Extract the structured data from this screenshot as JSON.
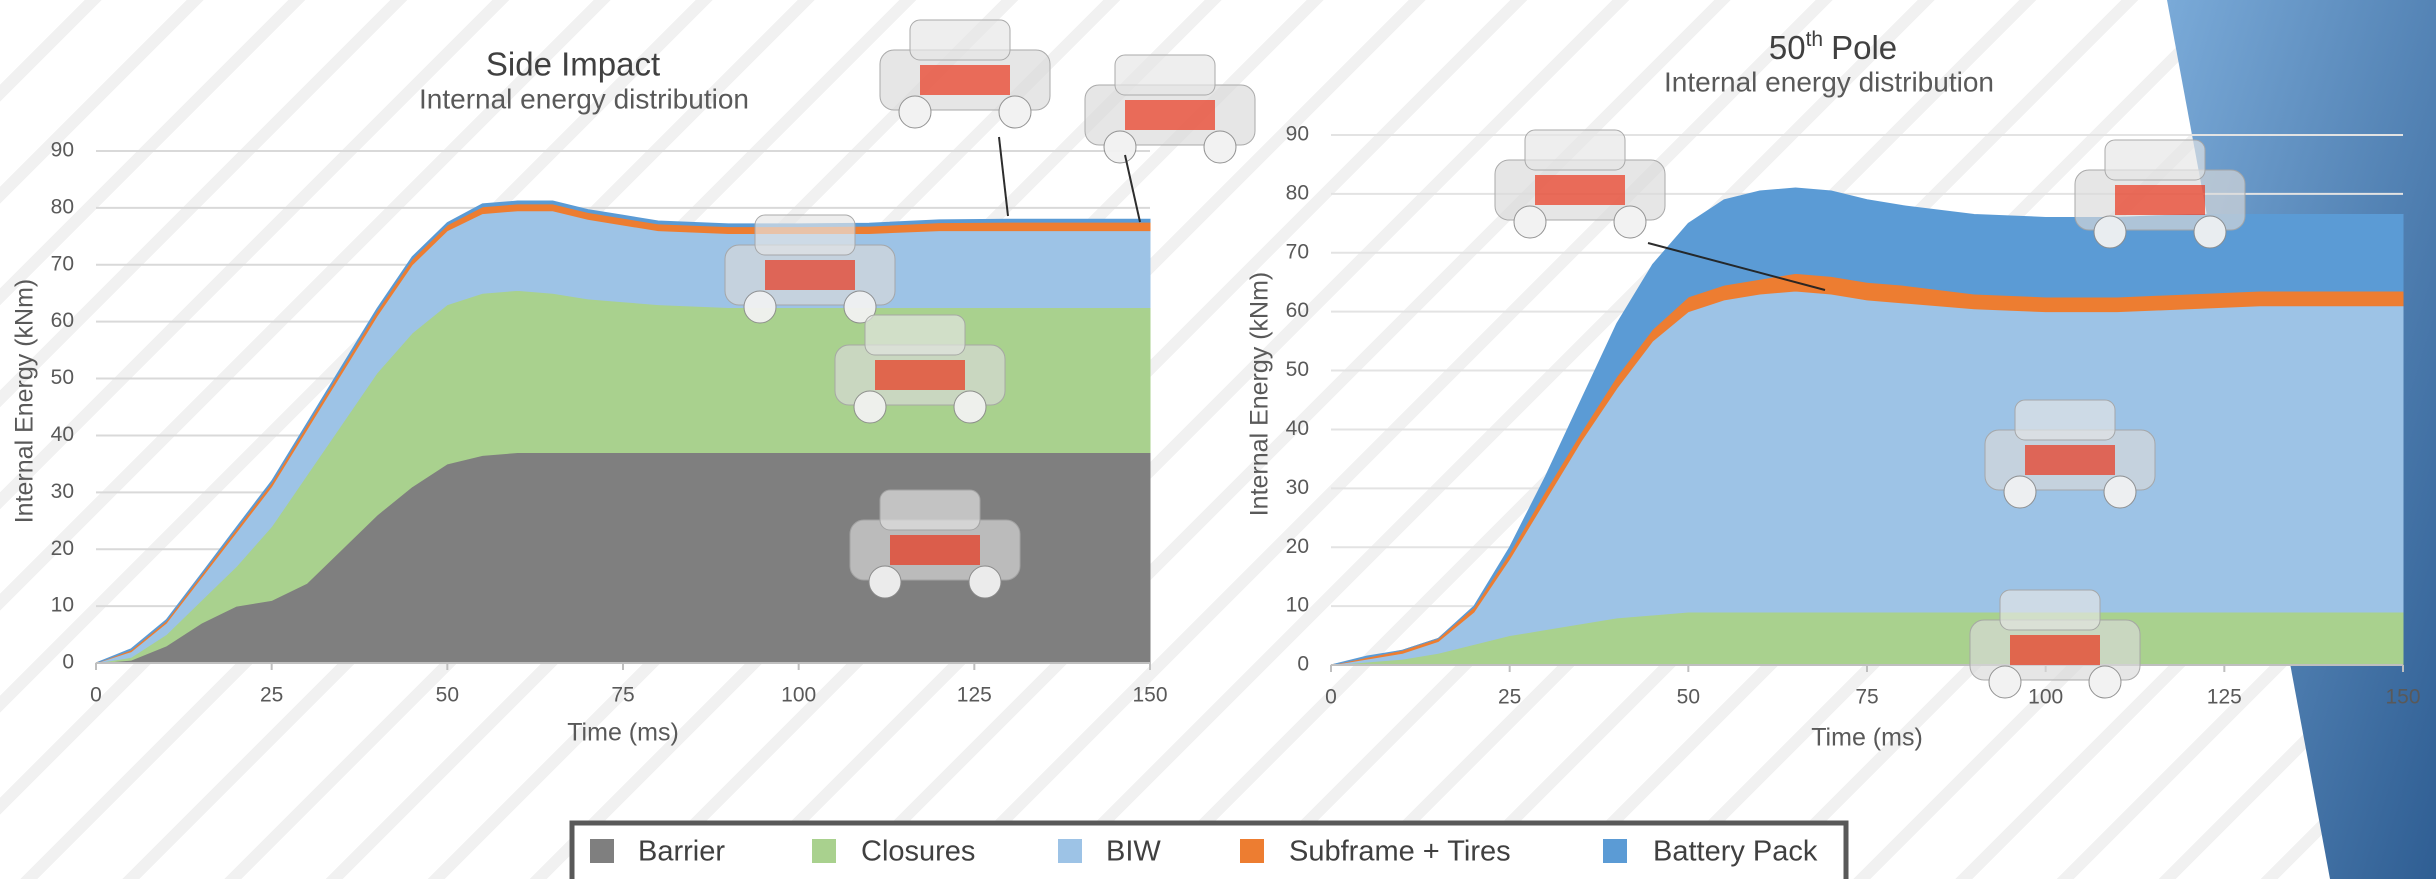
{
  "chart_data": [
    {
      "type": "area",
      "stacked": true,
      "title": "Side Impact",
      "subtitle": "Internal energy distribution",
      "x_label": "Time (ms)",
      "y_label": "Internal Energy (kNm)",
      "x": [
        0,
        5,
        10,
        15,
        20,
        25,
        30,
        35,
        40,
        45,
        50,
        55,
        60,
        65,
        70,
        75,
        80,
        90,
        100,
        110,
        120,
        130,
        140,
        150
      ],
      "series": [
        {
          "name": "Barrier",
          "color": "#7f7f7f",
          "values": [
            0,
            0.5,
            3,
            7,
            10,
            11,
            14,
            20,
            26,
            31,
            35,
            36.5,
            37,
            37,
            37,
            37,
            37,
            37,
            37,
            37,
            37,
            37,
            37,
            37
          ]
        },
        {
          "name": "Closures",
          "color": "#a9d18e",
          "values": [
            0,
            0.5,
            2,
            4,
            7,
            13,
            19,
            22,
            25,
            27,
            28,
            28.5,
            28.5,
            28,
            27,
            26.5,
            26,
            25.5,
            25.5,
            25.5,
            25.5,
            25.5,
            25.5,
            25.5
          ]
        },
        {
          "name": "BIW",
          "color": "#9dc3e6",
          "values": [
            0,
            1,
            2,
            4,
            6,
            7,
            8,
            9,
            10,
            12,
            13,
            14,
            14,
            14.5,
            14,
            13.5,
            13,
            13,
            13,
            13,
            13.5,
            13.5,
            13.5,
            13.5
          ]
        },
        {
          "name": "Subframe + Tires",
          "color": "#ed7d31",
          "values": [
            0,
            0.3,
            0.4,
            0.5,
            0.6,
            0.7,
            0.8,
            0.8,
            0.9,
            1,
            1,
            1.2,
            1.2,
            1.2,
            1.2,
            1.2,
            1.2,
            1.2,
            1.2,
            1.3,
            1.4,
            1.5,
            1.5,
            1.5
          ]
        },
        {
          "name": "Battery Pack",
          "color": "#5b9bd5",
          "values": [
            0,
            0.2,
            0.2,
            0.2,
            0.3,
            0.3,
            0.3,
            0.4,
            0.4,
            0.4,
            0.4,
            0.5,
            0.5,
            0.5,
            0.5,
            0.5,
            0.5,
            0.5,
            0.5,
            0.5,
            0.5,
            0.5,
            0.5,
            0.5
          ]
        }
      ],
      "xlim": [
        0,
        150
      ],
      "xticks": [
        0,
        25,
        50,
        75,
        100,
        125,
        150
      ],
      "ylim": [
        0,
        90
      ],
      "yticks": [
        0,
        10,
        20,
        30,
        40,
        50,
        60,
        70,
        80,
        90
      ],
      "grid": true
    },
    {
      "type": "area",
      "stacked": true,
      "title": [
        "50",
        "th",
        "Pole"
      ],
      "subtitle": "Internal energy distribution",
      "x_label": "Time (ms)",
      "y_label": "Internal Energy (kNm)",
      "x": [
        0,
        5,
        10,
        15,
        20,
        25,
        30,
        35,
        40,
        45,
        50,
        55,
        60,
        65,
        70,
        75,
        80,
        90,
        100,
        110,
        120,
        130,
        140,
        150
      ],
      "series": [
        {
          "color": "#a9d18e",
          "values": [
            0,
            0.5,
            1,
            2,
            3.5,
            5,
            6,
            7,
            8,
            8.5,
            9,
            9,
            9,
            9,
            9,
            9,
            9,
            9,
            9,
            9,
            9,
            9,
            9,
            9
          ]
        },
        {
          "color": "#9dc3e6",
          "values": [
            0,
            0.5,
            1,
            2,
            5.5,
            13,
            22,
            31,
            39,
            46.5,
            51,
            53,
            54,
            54.5,
            54,
            53,
            52.5,
            51.5,
            51,
            51,
            51.5,
            52,
            52,
            52
          ]
        },
        {
          "color": "#ed7d31",
          "values": [
            0,
            0.3,
            0.5,
            0.5,
            0.8,
            1,
            1.5,
            1.5,
            2,
            2,
            2.5,
            2.5,
            2.5,
            3,
            3,
            3,
            3,
            2.5,
            2.5,
            2.5,
            2.5,
            2.5,
            2.5,
            2.5
          ]
        },
        {
          "color": "#5b9bd5",
          "values": [
            0,
            0.2,
            0,
            0,
            0.2,
            1,
            2.5,
            5.5,
            9,
            11,
            12.5,
            14.5,
            15,
            14.5,
            14.5,
            14,
            13.5,
            13.5,
            13.5,
            13.5,
            13.5,
            13,
            13,
            13
          ]
        }
      ],
      "xlim": [
        0,
        150
      ],
      "xticks": [
        0,
        25,
        50,
        75,
        100,
        125,
        150
      ],
      "ylim": [
        0,
        90
      ],
      "yticks": [
        0,
        10,
        20,
        30,
        40,
        50,
        60,
        70,
        80,
        90
      ],
      "grid": true
    }
  ]
}
